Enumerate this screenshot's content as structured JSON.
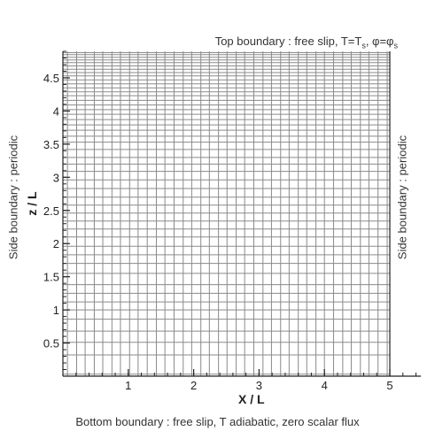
{
  "labels": {
    "top_prefix": "Top boundary : free slip, T=T",
    "top_sub1": "s",
    "top_mid": ", φ=φ",
    "top_sub2": "s",
    "bottom": "Bottom boundary : free slip, T adiabatic, zero scalar flux",
    "side_left": "Side boundary : periodic",
    "side_right": "Side boundary : periodic",
    "xlabel": "X / L",
    "ylabel": "z / L"
  },
  "chart_data": {
    "type": "grid-mesh",
    "xlabel": "X / L",
    "ylabel": "z / L",
    "xlim": [
      0,
      5
    ],
    "ylim": [
      0,
      4.9
    ],
    "x_ticks": [
      1,
      2,
      3,
      4,
      5
    ],
    "y_ticks": [
      0.5,
      1,
      1.5,
      2,
      2.5,
      3,
      3.5,
      4,
      4.5
    ],
    "x_tick_labels": [
      "1",
      "2",
      "3",
      "4",
      "5"
    ],
    "y_tick_labels": [
      "0.5",
      "1",
      "1.5",
      "2",
      "2.5",
      "3",
      "3.5",
      "4",
      "4.5"
    ],
    "grid_x_values": [
      0.07,
      0.21,
      0.34,
      0.48,
      0.61,
      0.75,
      0.88,
      1.02,
      1.15,
      1.29,
      1.43,
      1.56,
      1.7,
      1.84,
      1.97,
      2.11,
      2.24,
      2.38,
      2.51,
      2.65,
      2.78,
      2.92,
      3.06,
      3.19,
      3.33,
      3.46,
      3.6,
      3.73,
      3.87,
      4.0,
      4.14,
      4.28,
      4.41,
      4.55,
      4.68,
      4.82,
      4.96
    ],
    "grid_z_values": [
      0.03,
      0.32,
      0.51,
      0.68,
      0.86,
      1.0,
      1.12,
      1.25,
      1.38,
      1.55,
      1.7,
      1.83,
      1.96,
      2.1,
      2.22,
      2.34,
      2.46,
      2.58,
      2.7,
      2.83,
      2.96,
      3.09,
      3.2,
      3.3,
      3.42,
      3.53,
      3.62,
      3.71,
      3.79,
      3.87,
      3.95,
      4.02,
      4.09,
      4.16,
      4.23,
      4.29,
      4.35,
      4.41,
      4.47,
      4.53,
      4.58,
      4.63,
      4.68,
      4.73,
      4.77,
      4.81,
      4.85,
      4.88
    ],
    "colors": {
      "grid": "#8a8a8a",
      "axis": "#222222"
    }
  }
}
